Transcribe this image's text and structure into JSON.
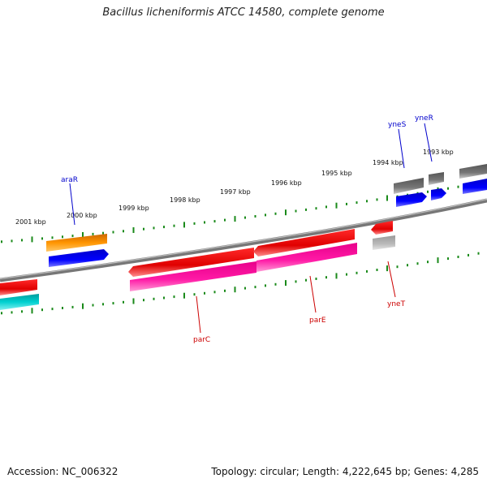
{
  "title": "Bacillus licheniformis ATCC 14580, complete genome",
  "scale_labels": [
    "2001 kbp",
    "2000 kbp",
    "1999 kbp",
    "1998 kbp",
    "1997 kbp",
    "1996 kbp",
    "1995 kbp",
    "1994 kbp",
    "1993 kbp"
  ],
  "genes_forward": [
    "araR",
    "yneS",
    "yneR"
  ],
  "genes_reverse": [
    "parC",
    "parE",
    "yneT"
  ],
  "colors": {
    "forward_label": "#0000cc",
    "reverse_label": "#cc0000",
    "backbone": "#8a8a8a",
    "tick": "#1a8a1a"
  },
  "footer": {
    "accession": "Accession: NC_006322",
    "topology": "Topology: circular; Length: 4,222,645 bp; Genes: 4,285"
  }
}
